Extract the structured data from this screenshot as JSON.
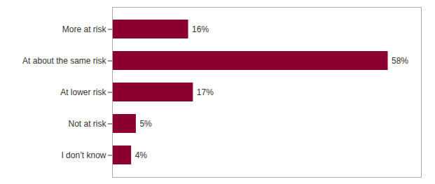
{
  "chart_data": {
    "type": "bar",
    "orientation": "horizontal",
    "categories": [
      "I don’t know",
      "Not at risk",
      "At lower risk",
      "At about the same risk",
      "More at risk"
    ],
    "values": [
      4,
      5,
      17,
      58,
      16
    ],
    "value_labels": [
      "4%",
      "5%",
      "17%",
      "58%",
      "16%"
    ],
    "data_labels": true,
    "color": "#8B0030",
    "xlim": [
      0,
      65
    ],
    "grid": false,
    "tick_labels": "y"
  }
}
